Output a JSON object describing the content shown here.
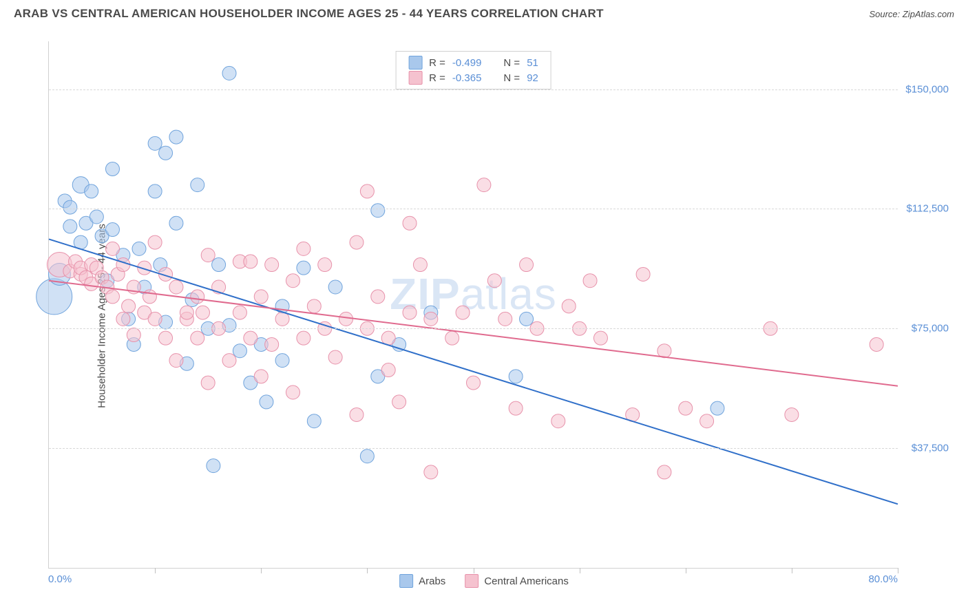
{
  "header": {
    "title": "ARAB VS CENTRAL AMERICAN HOUSEHOLDER INCOME AGES 25 - 44 YEARS CORRELATION CHART",
    "source": "Source: ZipAtlas.com"
  },
  "watermark": {
    "bold": "ZIP",
    "rest": "atlas"
  },
  "chart": {
    "type": "scatter",
    "ylabel": "Householder Income Ages 25 - 44 years",
    "xlim": [
      0,
      80
    ],
    "ylim": [
      0,
      165000
    ],
    "x_axis_label_min": "0.0%",
    "x_axis_label_max": "80.0%",
    "x_tick_positions_pct": [
      0,
      10,
      20,
      30,
      40,
      50,
      60,
      70,
      80
    ],
    "y_ticks": [
      {
        "value": 37500,
        "label": "$37,500"
      },
      {
        "value": 75000,
        "label": "$75,000"
      },
      {
        "value": 112500,
        "label": "$112,500"
      },
      {
        "value": 150000,
        "label": "$150,000"
      }
    ],
    "colors": {
      "background": "#ffffff",
      "grid": "#d8d8d8",
      "axis": "#d0d0d0",
      "tick_label": "#5a8fd6",
      "text": "#4a4a4a",
      "series1_fill": "#a9c8ec",
      "series1_stroke": "#6fa3dc",
      "series1_trend": "#2f6fc9",
      "series2_fill": "#f5c2cf",
      "series2_stroke": "#e791aa",
      "series2_trend": "#e06a8e"
    },
    "marker_radius_default": 10,
    "fill_opacity": 0.55,
    "line_width": 2,
    "correlation_box": {
      "rows": [
        {
          "swatch": "series1",
          "r_label": "R =",
          "r_value": "-0.499",
          "n_label": "N =",
          "n_value": "51"
        },
        {
          "swatch": "series2",
          "r_label": "R =",
          "r_value": "-0.365",
          "n_label": "N =",
          "n_value": "92"
        }
      ]
    },
    "bottom_legend": [
      {
        "swatch": "series1",
        "label": "Arabs"
      },
      {
        "swatch": "series2",
        "label": "Central Americans"
      }
    ],
    "series": [
      {
        "id": "series1",
        "name": "Arabs",
        "trend": {
          "x1": 0,
          "y1": 103000,
          "x2": 80,
          "y2": 20000
        },
        "points": [
          {
            "x": 0.5,
            "y": 85000,
            "r": 26
          },
          {
            "x": 1,
            "y": 92000,
            "r": 16
          },
          {
            "x": 1.5,
            "y": 115000
          },
          {
            "x": 2,
            "y": 107000
          },
          {
            "x": 2,
            "y": 113000
          },
          {
            "x": 3,
            "y": 102000
          },
          {
            "x": 3,
            "y": 120000,
            "r": 12
          },
          {
            "x": 3.5,
            "y": 108000
          },
          {
            "x": 4,
            "y": 118000
          },
          {
            "x": 4.5,
            "y": 110000
          },
          {
            "x": 5,
            "y": 104000
          },
          {
            "x": 5.5,
            "y": 90000
          },
          {
            "x": 6,
            "y": 125000
          },
          {
            "x": 6,
            "y": 106000
          },
          {
            "x": 7,
            "y": 98000
          },
          {
            "x": 7.5,
            "y": 78000
          },
          {
            "x": 8,
            "y": 70000
          },
          {
            "x": 8.5,
            "y": 100000
          },
          {
            "x": 9,
            "y": 88000
          },
          {
            "x": 10,
            "y": 133000
          },
          {
            "x": 10,
            "y": 118000
          },
          {
            "x": 10.5,
            "y": 95000
          },
          {
            "x": 11,
            "y": 77000
          },
          {
            "x": 11,
            "y": 130000
          },
          {
            "x": 12,
            "y": 135000
          },
          {
            "x": 12,
            "y": 108000
          },
          {
            "x": 13,
            "y": 64000
          },
          {
            "x": 13.5,
            "y": 84000
          },
          {
            "x": 14,
            "y": 120000
          },
          {
            "x": 15,
            "y": 75000
          },
          {
            "x": 15.5,
            "y": 32000
          },
          {
            "x": 16,
            "y": 95000
          },
          {
            "x": 17,
            "y": 155000
          },
          {
            "x": 17,
            "y": 76000
          },
          {
            "x": 18,
            "y": 68000
          },
          {
            "x": 19,
            "y": 58000
          },
          {
            "x": 20,
            "y": 70000
          },
          {
            "x": 20.5,
            "y": 52000
          },
          {
            "x": 22,
            "y": 82000
          },
          {
            "x": 22,
            "y": 65000
          },
          {
            "x": 24,
            "y": 94000
          },
          {
            "x": 25,
            "y": 46000
          },
          {
            "x": 27,
            "y": 88000
          },
          {
            "x": 30,
            "y": 35000
          },
          {
            "x": 31,
            "y": 60000
          },
          {
            "x": 31,
            "y": 112000
          },
          {
            "x": 33,
            "y": 70000
          },
          {
            "x": 36,
            "y": 80000
          },
          {
            "x": 44,
            "y": 60000
          },
          {
            "x": 45,
            "y": 78000
          },
          {
            "x": 63,
            "y": 50000
          }
        ]
      },
      {
        "id": "series2",
        "name": "Central Americans",
        "trend": {
          "x1": 0,
          "y1": 90000,
          "x2": 80,
          "y2": 57000
        },
        "points": [
          {
            "x": 1,
            "y": 95000,
            "r": 18
          },
          {
            "x": 2,
            "y": 93000
          },
          {
            "x": 2.5,
            "y": 96000
          },
          {
            "x": 3,
            "y": 92000
          },
          {
            "x": 3,
            "y": 94000
          },
          {
            "x": 3.5,
            "y": 91000
          },
          {
            "x": 4,
            "y": 95000
          },
          {
            "x": 4,
            "y": 89000
          },
          {
            "x": 4.5,
            "y": 94000
          },
          {
            "x": 5,
            "y": 91000
          },
          {
            "x": 5.5,
            "y": 88000
          },
          {
            "x": 6,
            "y": 100000
          },
          {
            "x": 6,
            "y": 85000
          },
          {
            "x": 6.5,
            "y": 92000
          },
          {
            "x": 7,
            "y": 95000
          },
          {
            "x": 7,
            "y": 78000
          },
          {
            "x": 7.5,
            "y": 82000
          },
          {
            "x": 8,
            "y": 88000
          },
          {
            "x": 8,
            "y": 73000
          },
          {
            "x": 9,
            "y": 94000
          },
          {
            "x": 9,
            "y": 80000
          },
          {
            "x": 9.5,
            "y": 85000
          },
          {
            "x": 10,
            "y": 78000
          },
          {
            "x": 10,
            "y": 102000
          },
          {
            "x": 11,
            "y": 92000
          },
          {
            "x": 11,
            "y": 72000
          },
          {
            "x": 12,
            "y": 88000
          },
          {
            "x": 12,
            "y": 65000
          },
          {
            "x": 13,
            "y": 78000
          },
          {
            "x": 13,
            "y": 80000
          },
          {
            "x": 14,
            "y": 85000
          },
          {
            "x": 14,
            "y": 72000
          },
          {
            "x": 14.5,
            "y": 80000
          },
          {
            "x": 15,
            "y": 98000
          },
          {
            "x": 15,
            "y": 58000
          },
          {
            "x": 16,
            "y": 88000
          },
          {
            "x": 16,
            "y": 75000
          },
          {
            "x": 17,
            "y": 65000
          },
          {
            "x": 18,
            "y": 96000
          },
          {
            "x": 18,
            "y": 80000
          },
          {
            "x": 19,
            "y": 72000
          },
          {
            "x": 19,
            "y": 96000
          },
          {
            "x": 20,
            "y": 85000
          },
          {
            "x": 20,
            "y": 60000
          },
          {
            "x": 21,
            "y": 95000
          },
          {
            "x": 21,
            "y": 70000
          },
          {
            "x": 22,
            "y": 78000
          },
          {
            "x": 23,
            "y": 90000
          },
          {
            "x": 23,
            "y": 55000
          },
          {
            "x": 24,
            "y": 100000
          },
          {
            "x": 24,
            "y": 72000
          },
          {
            "x": 25,
            "y": 82000
          },
          {
            "x": 26,
            "y": 75000
          },
          {
            "x": 26,
            "y": 95000
          },
          {
            "x": 27,
            "y": 66000
          },
          {
            "x": 28,
            "y": 78000
          },
          {
            "x": 29,
            "y": 48000
          },
          {
            "x": 29,
            "y": 102000
          },
          {
            "x": 30,
            "y": 118000
          },
          {
            "x": 30,
            "y": 75000
          },
          {
            "x": 31,
            "y": 85000
          },
          {
            "x": 32,
            "y": 62000
          },
          {
            "x": 32,
            "y": 72000
          },
          {
            "x": 33,
            "y": 52000
          },
          {
            "x": 34,
            "y": 80000
          },
          {
            "x": 34,
            "y": 108000
          },
          {
            "x": 35,
            "y": 95000
          },
          {
            "x": 36,
            "y": 78000
          },
          {
            "x": 36,
            "y": 30000
          },
          {
            "x": 38,
            "y": 72000
          },
          {
            "x": 39,
            "y": 80000
          },
          {
            "x": 40,
            "y": 58000
          },
          {
            "x": 41,
            "y": 120000
          },
          {
            "x": 42,
            "y": 90000
          },
          {
            "x": 43,
            "y": 78000
          },
          {
            "x": 44,
            "y": 50000
          },
          {
            "x": 45,
            "y": 95000
          },
          {
            "x": 46,
            "y": 75000
          },
          {
            "x": 48,
            "y": 46000
          },
          {
            "x": 49,
            "y": 82000
          },
          {
            "x": 50,
            "y": 75000
          },
          {
            "x": 51,
            "y": 90000
          },
          {
            "x": 52,
            "y": 72000
          },
          {
            "x": 55,
            "y": 48000
          },
          {
            "x": 56,
            "y": 92000
          },
          {
            "x": 58,
            "y": 68000
          },
          {
            "x": 58,
            "y": 30000
          },
          {
            "x": 60,
            "y": 50000
          },
          {
            "x": 62,
            "y": 46000
          },
          {
            "x": 68,
            "y": 75000
          },
          {
            "x": 70,
            "y": 48000
          },
          {
            "x": 78,
            "y": 70000
          }
        ]
      }
    ]
  }
}
